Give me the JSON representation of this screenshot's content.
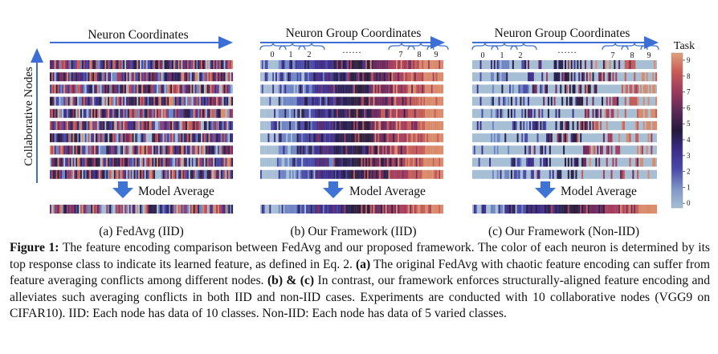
{
  "panels": [
    {
      "header": "Neuron Coordinates",
      "caption": "(a) FedAvg (IID)",
      "average_label": "Model Average",
      "mode": "chaotic",
      "group_labels": []
    },
    {
      "header": "Neuron Group Coordinates",
      "caption": "(b) Our Framework (IID)",
      "average_label": "Model Average",
      "mode": "aligned",
      "group_labels": [
        "0",
        "1",
        "2",
        "……",
        "7",
        "8",
        "9"
      ]
    },
    {
      "header": "Neuron Group Coordinates",
      "caption": "(c) Our Framework (Non-IID)",
      "average_label": "Model Average",
      "mode": "aligned-noniid",
      "group_labels": [
        "0",
        "1",
        "2",
        "……",
        "7",
        "8",
        "9"
      ]
    }
  ],
  "y_axis_label": "Collaborative Nodes",
  "num_nodes": 10,
  "colorbar": {
    "title": "Task",
    "ticks": [
      "9",
      "8",
      "7",
      "6",
      "5",
      "4",
      "3",
      "2",
      "1",
      "0"
    ],
    "colors": [
      "#d98a6a",
      "#c45d5a",
      "#a53e5e",
      "#6f2b5e",
      "#2f1f3d",
      "#2a2150",
      "#3f2f8a",
      "#4a4aa8",
      "#6f86c4",
      "#a6bfd4"
    ]
  },
  "caption": {
    "figure_label": "Figure 1:",
    "body_1": " The feature encoding comparison between FedAvg and our proposed framework. The color of each neuron is determined by its top response class to indicate its learned feature, as defined in Eq. 2. ",
    "bold_a": "(a)",
    "body_2": " The original FedAvg with chaotic feature encoding can suffer from feature averaging conflicts among different nodes. ",
    "bold_bc": "(b) & (c)",
    "body_3": " In contrast, our framework enforces structurally-aligned feature encoding and alleviates such averaging conflicts in both IID and non-IID cases. Experiments are conducted with 10 collaborative nodes (VGG9 on CIFAR10). IID: Each node has data of 10 classes. Non-IID: Each node has data of 5 varied classes."
  },
  "colors": {
    "arrow_blue": "#3b6fd6",
    "down_arrow": "#3f74d4",
    "noniid_fill": "#a6bfd4"
  }
}
